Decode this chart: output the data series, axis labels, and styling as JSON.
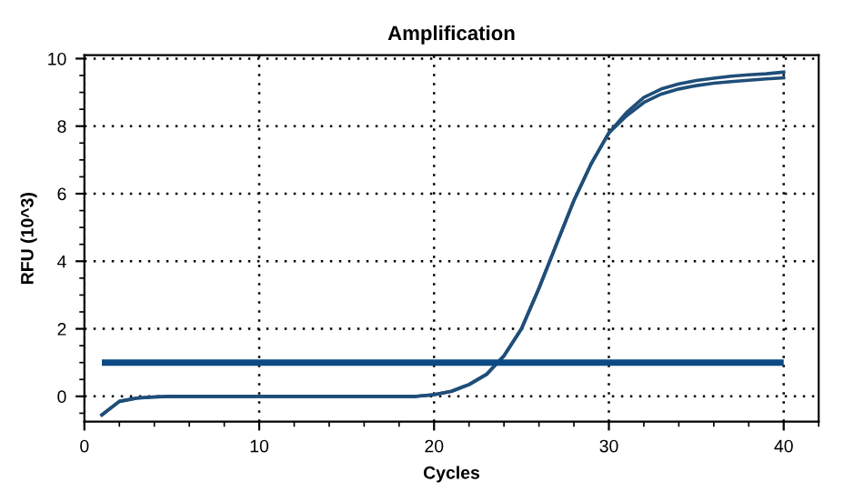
{
  "chart_data": {
    "type": "line",
    "title": "Amplification",
    "xlabel": "Cycles",
    "ylabel": "RFU (10^3)",
    "x": [
      1,
      2,
      3,
      4,
      5,
      6,
      7,
      8,
      9,
      10,
      11,
      12,
      13,
      14,
      15,
      16,
      17,
      18,
      19,
      20,
      21,
      22,
      23,
      24,
      25,
      26,
      27,
      28,
      29,
      30,
      31,
      32,
      33,
      34,
      35,
      36,
      37,
      38,
      39,
      40
    ],
    "series": [
      {
        "color": "#1f4e79",
        "values": [
          -0.55,
          -0.15,
          -0.05,
          -0.02,
          0,
          0,
          0,
          0,
          0,
          0,
          0,
          0,
          0,
          0,
          0,
          0,
          0,
          0,
          0,
          0.05,
          0.15,
          0.35,
          0.65,
          1.2,
          2.0,
          3.2,
          4.5,
          5.8,
          6.9,
          7.8,
          8.4,
          8.85,
          9.1,
          9.25,
          9.35,
          9.42,
          9.48,
          9.52,
          9.55,
          9.6
        ]
      },
      {
        "color": "#1f4e79",
        "values": [
          -0.55,
          -0.15,
          -0.05,
          -0.02,
          0,
          0,
          0,
          0,
          0,
          0,
          0,
          0,
          0,
          0,
          0,
          0,
          0,
          0,
          0,
          0.05,
          0.15,
          0.35,
          0.65,
          1.2,
          2.0,
          3.2,
          4.5,
          5.8,
          6.9,
          7.8,
          8.3,
          8.7,
          8.95,
          9.1,
          9.2,
          9.27,
          9.32,
          9.36,
          9.4,
          9.43
        ]
      }
    ],
    "ref_lines": [
      {
        "axis": "y",
        "value": 1,
        "color": "#0b4a84"
      }
    ],
    "xlim": [
      0,
      42
    ],
    "ylim": [
      -0.75,
      10.1
    ],
    "xticks": [
      0,
      10,
      20,
      30,
      40
    ],
    "yticks": [
      0,
      2,
      4,
      6,
      8,
      10
    ],
    "grid": true,
    "line_style": "solid",
    "marker": "none"
  }
}
